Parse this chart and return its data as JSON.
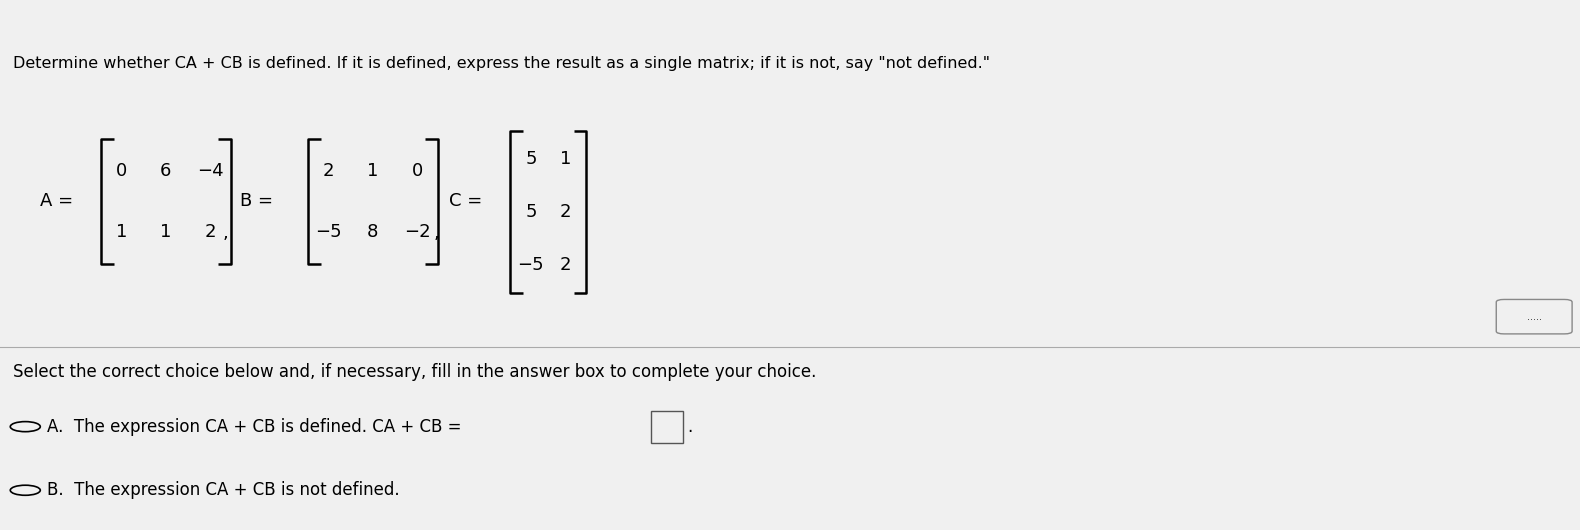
{
  "title_text": "Determine whether CA + CB is defined. If it is defined, express the result as a single matrix; if it is not, say \"not defined.\"",
  "A_rows": [
    [
      "0",
      "6",
      "−4"
    ],
    [
      "1",
      "1",
      "2"
    ]
  ],
  "B_rows": [
    [
      "2",
      "1",
      "0"
    ],
    [
      "−5",
      "8",
      "−2"
    ]
  ],
  "C_rows": [
    [
      "5",
      "1"
    ],
    [
      "5",
      "2"
    ],
    [
      "−5",
      "2"
    ]
  ],
  "select_text": "Select the correct choice below and, if necessary, fill in the answer box to complete your choice.",
  "bg_color": "#f0f0f0",
  "text_color": "#000000",
  "font_size_title": 11.5,
  "font_size_body": 12,
  "font_size_matrix": 13
}
